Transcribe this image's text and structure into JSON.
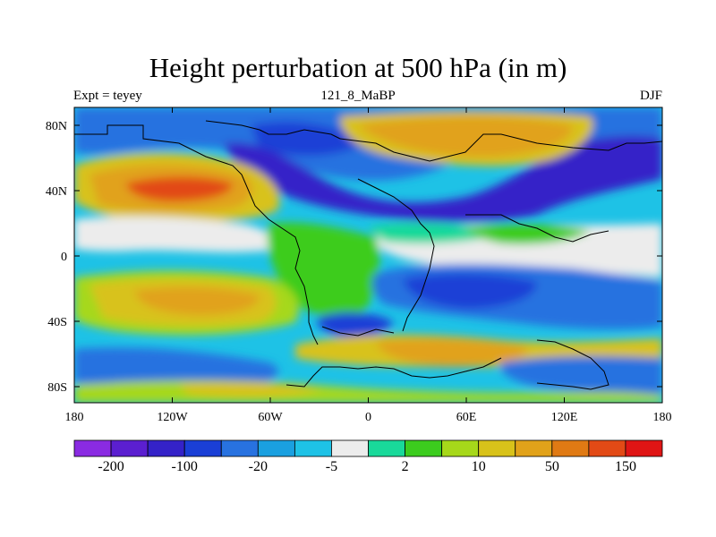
{
  "title": "Height perturbation at 500 hPa (in m)",
  "subtitle_left": "Expt = teyey",
  "subtitle_center": "121_8_MaBP",
  "subtitle_right": "DJF",
  "y_ticks": [
    "80N",
    "40N",
    "0",
    "40S",
    "80S"
  ],
  "x_ticks": [
    "180",
    "120W",
    "60W",
    "0",
    "60E",
    "120E",
    "180"
  ],
  "colorbar": {
    "colors": [
      "#8a2be2",
      "#5b1fd0",
      "#3422c8",
      "#1a3fd6",
      "#2872e0",
      "#1aa0e0",
      "#1ec2e6",
      "#ececec",
      "#19d99a",
      "#3ccc1e",
      "#a6d81a",
      "#d8c21a",
      "#e1a21a",
      "#e07a14",
      "#e24a16",
      "#df1515"
    ],
    "labels": [
      {
        "text": "-200",
        "boundary": 1
      },
      {
        "text": "-100",
        "boundary": 3
      },
      {
        "text": "-20",
        "boundary": 5
      },
      {
        "text": "-5",
        "boundary": 7
      },
      {
        "text": "2",
        "boundary": 9
      },
      {
        "text": "10",
        "boundary": 11
      },
      {
        "text": "50",
        "boundary": 13
      },
      {
        "text": "150",
        "boundary": 15
      }
    ]
  },
  "colors": {
    "gray": "#ececec",
    "cyan": "#1ec2e6",
    "lightblue": "#1aa0e0",
    "blue": "#2872e0",
    "deepblue": "#1a3fd6",
    "indigo": "#3422c8",
    "green": "#3ccc1e",
    "teal": "#19d99a",
    "yellowgreen": "#a6d81a",
    "yellow": "#d8c21a",
    "orange": "#e1a21a",
    "darkorange": "#e07a14",
    "red": "#e24a16",
    "coast": "#000000"
  }
}
